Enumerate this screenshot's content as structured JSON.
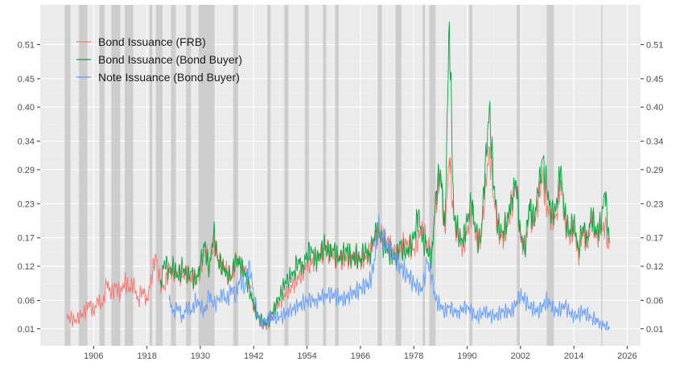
{
  "chart_data": {
    "type": "line",
    "title": "",
    "xlabel": "",
    "ylabel": "",
    "xlim": [
      1894,
      2029
    ],
    "ylim": [
      -0.02,
      0.58
    ],
    "x_ticks": [
      "1906",
      "1918",
      "1930",
      "1942",
      "1954",
      "1966",
      "1978",
      "1990",
      "2002",
      "2014",
      "2026"
    ],
    "y_ticks": [
      "0.01",
      "0.06",
      "0.12",
      "0.17",
      "0.23",
      "0.29",
      "0.34",
      "0.40",
      "0.45",
      "0.51"
    ],
    "y_tick_values": [
      0.01,
      0.06,
      0.12,
      0.17,
      0.23,
      0.29,
      0.34,
      0.4,
      0.45,
      0.51
    ],
    "grid": true,
    "legend_position": "top-left",
    "recession_shading": [
      [
        1899.5,
        1900.8
      ],
      [
        1902.7,
        1904.6
      ],
      [
        1907.3,
        1908.5
      ],
      [
        1910.0,
        1912.0
      ],
      [
        1913.0,
        1914.9
      ],
      [
        1918.6,
        1919.2
      ],
      [
        1920.0,
        1921.5
      ],
      [
        1923.4,
        1924.5
      ],
      [
        1926.8,
        1927.9
      ],
      [
        1929.6,
        1933.2
      ],
      [
        1937.4,
        1938.5
      ],
      [
        1945.1,
        1945.8
      ],
      [
        1948.9,
        1949.8
      ],
      [
        1953.5,
        1954.4
      ],
      [
        1957.6,
        1958.3
      ],
      [
        1960.3,
        1961.1
      ],
      [
        1969.9,
        1970.8
      ],
      [
        1973.9,
        1975.2
      ],
      [
        1980.0,
        1980.5
      ],
      [
        1981.5,
        1982.9
      ],
      [
        1990.5,
        1991.2
      ],
      [
        2001.2,
        2001.9
      ],
      [
        2007.9,
        2009.5
      ],
      [
        2020.1,
        2020.4
      ]
    ],
    "series": [
      {
        "name": "Bond Issuance (FRB)",
        "color": "#F8766D",
        "x": [
          1900,
          1902,
          1904,
          1905,
          1906,
          1907,
          1908,
          1909,
          1910,
          1911,
          1912,
          1913,
          1914,
          1915,
          1916,
          1917,
          1918,
          1919,
          1920,
          1921,
          1922,
          1923,
          1924,
          1925,
          1926,
          1927,
          1928,
          1929,
          1930,
          1931,
          1932,
          1933,
          1934,
          1935,
          1936,
          1937,
          1938,
          1939,
          1940,
          1941,
          1942,
          1943,
          1944,
          1945,
          1946,
          1948,
          1950,
          1952,
          1954,
          1956,
          1958,
          1960,
          1962,
          1964,
          1966,
          1968,
          1969,
          1970,
          1971,
          1972,
          1974,
          1976,
          1978,
          1980,
          1981,
          1982,
          1983,
          1984,
          1985,
          1986,
          1987,
          1988,
          1989,
          1990,
          1991,
          1992,
          1993,
          1994,
          1995,
          1996,
          1997,
          1998,
          1999,
          2000,
          2001,
          2002,
          2003,
          2004,
          2005,
          2006,
          2007,
          2008,
          2009,
          2010,
          2011,
          2012,
          2013,
          2014,
          2015,
          2016,
          2017,
          2018,
          2019,
          2020,
          2021,
          2022
        ],
        "y": [
          0.03,
          0.025,
          0.04,
          0.055,
          0.04,
          0.06,
          0.05,
          0.09,
          0.07,
          0.085,
          0.07,
          0.095,
          0.08,
          0.09,
          0.06,
          0.08,
          0.06,
          0.1,
          0.14,
          0.09,
          0.08,
          0.12,
          0.1,
          0.11,
          0.1,
          0.11,
          0.095,
          0.1,
          0.11,
          0.15,
          0.12,
          0.17,
          0.13,
          0.12,
          0.11,
          0.1,
          0.13,
          0.12,
          0.115,
          0.09,
          0.05,
          0.03,
          0.02,
          0.015,
          0.03,
          0.06,
          0.08,
          0.1,
          0.12,
          0.13,
          0.15,
          0.14,
          0.13,
          0.14,
          0.13,
          0.14,
          0.16,
          0.18,
          0.17,
          0.16,
          0.14,
          0.16,
          0.15,
          0.19,
          0.16,
          0.14,
          0.24,
          0.28,
          0.18,
          0.31,
          0.2,
          0.17,
          0.15,
          0.18,
          0.22,
          0.17,
          0.16,
          0.25,
          0.33,
          0.24,
          0.18,
          0.17,
          0.19,
          0.23,
          0.26,
          0.17,
          0.14,
          0.22,
          0.19,
          0.24,
          0.28,
          0.22,
          0.2,
          0.21,
          0.27,
          0.2,
          0.17,
          0.19,
          0.14,
          0.18,
          0.16,
          0.2,
          0.17,
          0.18,
          0.19,
          0.15
        ]
      },
      {
        "name": "Bond Issuance (Bond Buyer)",
        "color": "#00A63E",
        "x": [
          1921,
          1922,
          1923,
          1924,
          1925,
          1926,
          1927,
          1928,
          1929,
          1930,
          1931,
          1932,
          1933,
          1934,
          1935,
          1936,
          1937,
          1938,
          1939,
          1940,
          1941,
          1942,
          1943,
          1944,
          1945,
          1946,
          1947,
          1948,
          1949,
          1950,
          1951,
          1952,
          1953,
          1954,
          1955,
          1956,
          1957,
          1958,
          1959,
          1960,
          1961,
          1962,
          1963,
          1964,
          1965,
          1966,
          1967,
          1968,
          1969,
          1970,
          1971,
          1972,
          1973,
          1974,
          1975,
          1976,
          1977,
          1978,
          1979,
          1980,
          1981,
          1982,
          1983,
          1984,
          1985,
          1986,
          1987,
          1988,
          1989,
          1990,
          1991,
          1992,
          1993,
          1994,
          1995,
          1996,
          1997,
          1998,
          1999,
          2000,
          2001,
          2002,
          2003,
          2004,
          2005,
          2006,
          2007,
          2008,
          2009,
          2010,
          2011,
          2012,
          2013,
          2014,
          2015,
          2016,
          2017,
          2018,
          2019,
          2020,
          2021,
          2022
        ],
        "y": [
          0.09,
          0.13,
          0.11,
          0.12,
          0.1,
          0.12,
          0.1,
          0.11,
          0.09,
          0.12,
          0.16,
          0.11,
          0.18,
          0.13,
          0.12,
          0.11,
          0.1,
          0.14,
          0.12,
          0.11,
          0.08,
          0.05,
          0.03,
          0.02,
          0.02,
          0.035,
          0.05,
          0.07,
          0.09,
          0.1,
          0.11,
          0.13,
          0.12,
          0.14,
          0.15,
          0.13,
          0.14,
          0.16,
          0.14,
          0.15,
          0.13,
          0.14,
          0.15,
          0.13,
          0.14,
          0.13,
          0.15,
          0.14,
          0.17,
          0.19,
          0.16,
          0.15,
          0.14,
          0.13,
          0.16,
          0.14,
          0.15,
          0.17,
          0.21,
          0.17,
          0.15,
          0.13,
          0.25,
          0.29,
          0.19,
          0.55,
          0.21,
          0.18,
          0.16,
          0.2,
          0.23,
          0.18,
          0.16,
          0.28,
          0.4,
          0.26,
          0.19,
          0.18,
          0.2,
          0.24,
          0.27,
          0.18,
          0.15,
          0.23,
          0.2,
          0.25,
          0.31,
          0.25,
          0.21,
          0.22,
          0.29,
          0.21,
          0.18,
          0.2,
          0.15,
          0.19,
          0.17,
          0.21,
          0.18,
          0.19,
          0.25,
          0.16
        ]
      },
      {
        "name": "Note Issuance (Bond Buyer)",
        "color": "#619CFF",
        "x": [
          1923,
          1924,
          1925,
          1926,
          1927,
          1928,
          1929,
          1930,
          1931,
          1932,
          1933,
          1934,
          1935,
          1936,
          1937,
          1938,
          1939,
          1940,
          1941,
          1942,
          1943,
          1944,
          1945,
          1946,
          1948,
          1950,
          1952,
          1954,
          1956,
          1958,
          1960,
          1962,
          1964,
          1966,
          1968,
          1969,
          1970,
          1971,
          1972,
          1973,
          1974,
          1975,
          1976,
          1977,
          1978,
          1979,
          1980,
          1981,
          1982,
          1983,
          1984,
          1985,
          1986,
          1987,
          1988,
          1990,
          1992,
          1994,
          1996,
          1998,
          2000,
          2002,
          2004,
          2006,
          2008,
          2010,
          2012,
          2014,
          2016,
          2018,
          2020,
          2022
        ],
        "y": [
          0.06,
          0.04,
          0.05,
          0.03,
          0.05,
          0.04,
          0.06,
          0.05,
          0.04,
          0.07,
          0.05,
          0.06,
          0.07,
          0.06,
          0.08,
          0.07,
          0.1,
          0.08,
          0.13,
          0.07,
          0.03,
          0.02,
          0.025,
          0.03,
          0.03,
          0.04,
          0.05,
          0.06,
          0.06,
          0.07,
          0.07,
          0.06,
          0.07,
          0.08,
          0.09,
          0.12,
          0.19,
          0.17,
          0.16,
          0.15,
          0.13,
          0.12,
          0.11,
          0.1,
          0.09,
          0.08,
          0.08,
          0.13,
          0.1,
          0.06,
          0.05,
          0.04,
          0.05,
          0.04,
          0.04,
          0.05,
          0.03,
          0.04,
          0.03,
          0.04,
          0.04,
          0.07,
          0.05,
          0.04,
          0.06,
          0.04,
          0.05,
          0.03,
          0.04,
          0.03,
          0.02,
          0.01
        ]
      }
    ]
  }
}
